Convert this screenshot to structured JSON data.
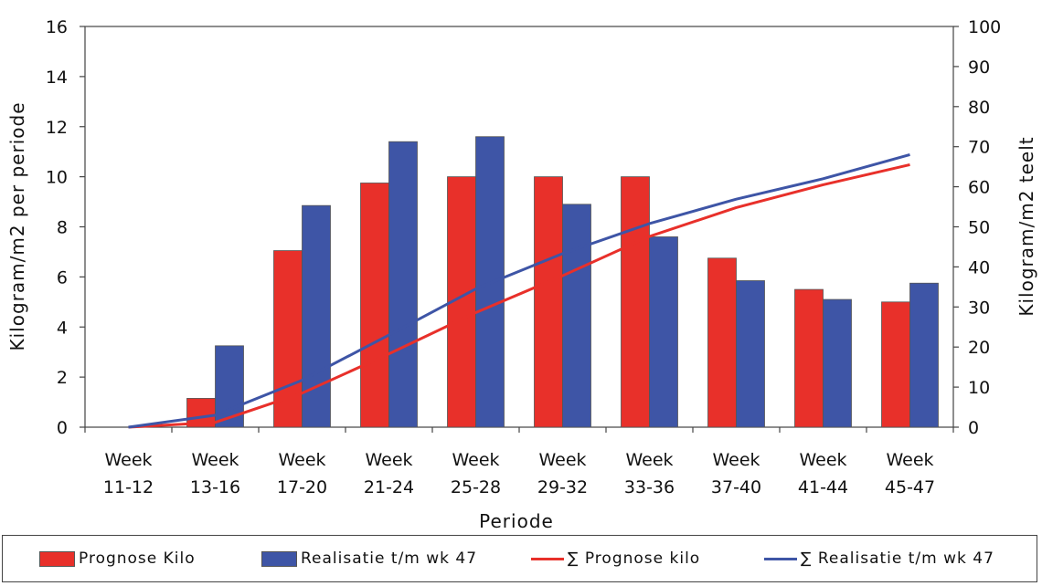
{
  "chart_data": {
    "type": "bar",
    "title": "",
    "xlabel": "Periode",
    "ylabel_left": "Kilogram/m2 per periode",
    "ylabel_right": "Kilogram/m2 teelt",
    "ylim_left": [
      0,
      16
    ],
    "yticks_left": [
      "0",
      "2",
      "4",
      "6",
      "8",
      "10",
      "12",
      "14",
      "16"
    ],
    "ylim_right": [
      0,
      100
    ],
    "yticks_right": [
      "0",
      "10",
      "20",
      "30",
      "40",
      "50",
      "60",
      "70",
      "80",
      "90",
      "100"
    ],
    "categories": [
      [
        "Week",
        "11-12"
      ],
      [
        "Week",
        "13-16"
      ],
      [
        "Week",
        "17-20"
      ],
      [
        "Week",
        "21-24"
      ],
      [
        "Week",
        "25-28"
      ],
      [
        "Week",
        "29-32"
      ],
      [
        "Week",
        "33-36"
      ],
      [
        "Week",
        "37-40"
      ],
      [
        "Week",
        "41-44"
      ],
      [
        "Week",
        "45-47"
      ]
    ],
    "bar_series": [
      {
        "name": "Prognose Kilo",
        "color": "#e8302a",
        "values": [
          0,
          1.15,
          7.05,
          9.75,
          10.0,
          10.0,
          10.0,
          6.75,
          5.5,
          5.0
        ]
      },
      {
        "name": "Realisatie t/m wk 47",
        "color": "#3e55a6",
        "values": [
          0,
          3.25,
          8.85,
          11.4,
          11.6,
          8.9,
          7.6,
          5.85,
          5.1,
          5.75
        ]
      }
    ],
    "line_series": [
      {
        "name": "∑ Prognose kilo",
        "color": "#e8302a",
        "axis": "right",
        "values": [
          0,
          1.2,
          8.5,
          18.3,
          28.6,
          37.8,
          47.6,
          54.8,
          60.5,
          65.5
        ]
      },
      {
        "name": "∑ Realisatie t/m wk 47",
        "color": "#3e55a6",
        "axis": "right",
        "values": [
          0,
          3.0,
          11.7,
          23.0,
          34.5,
          43.3,
          50.8,
          56.9,
          62.0,
          68.0
        ]
      }
    ],
    "grid": false,
    "legend_position": "bottom"
  }
}
